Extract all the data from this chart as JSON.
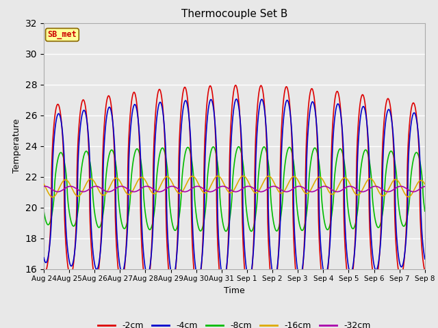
{
  "title": "Thermocouple Set B",
  "xlabel": "Time",
  "ylabel": "Temperature",
  "ylim": [
    16,
    32
  ],
  "yticks": [
    16,
    18,
    20,
    22,
    24,
    26,
    28,
    30,
    32
  ],
  "annotation_text": "SB_met",
  "annotation_color": "#cc0000",
  "annotation_bg": "#ffff99",
  "annotation_border": "#886600",
  "series": {
    "-2cm": {
      "color": "#dd0000",
      "lw": 1.2
    },
    "-4cm": {
      "color": "#0000cc",
      "lw": 1.2
    },
    "-8cm": {
      "color": "#00bb00",
      "lw": 1.2
    },
    "-16cm": {
      "color": "#ddaa00",
      "lw": 1.2
    },
    "-32cm": {
      "color": "#aa00aa",
      "lw": 1.2
    }
  },
  "bg_color": "#e8e8e8",
  "plot_bg": "#e8e8e8",
  "grid_color": "#ffffff",
  "n_days": 15,
  "samples_per_day": 144,
  "xtick_labels": [
    "Aug 24",
    "Aug 25",
    "Aug 26",
    "Aug 27",
    "Aug 28",
    "Aug 29",
    "Aug 30",
    "Aug 31",
    "Sep 1",
    "Sep 2",
    "Sep 3",
    "Sep 4",
    "Sep 5",
    "Sep 6",
    "Sep 7",
    "Sep 8"
  ]
}
